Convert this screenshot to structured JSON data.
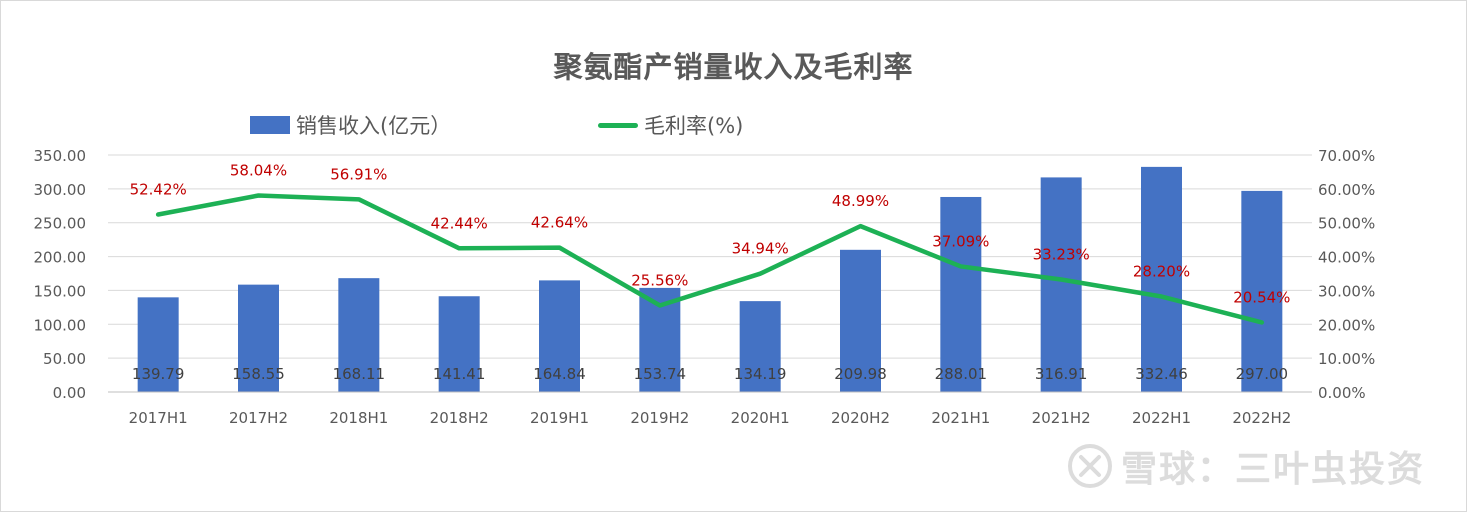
{
  "page": {
    "watermark_text": "雪球：三叶虫投资",
    "colors": {
      "bar": "#4472c4",
      "line": "#1db155",
      "line_label": "#c00000",
      "axis_text": "#595959",
      "grid": "#d9d9d9"
    }
  },
  "chart_data": {
    "type": "bar",
    "title": "聚氨酯产销量收入及毛利率",
    "legend_position": "top",
    "grid": true,
    "categories": [
      "2017H1",
      "2017H2",
      "2018H1",
      "2018H2",
      "2019H1",
      "2019H2",
      "2020H1",
      "2020H2",
      "2021H1",
      "2021H2",
      "2022H1",
      "2022H2"
    ],
    "series": [
      {
        "name": "销售收入(亿元）",
        "type": "bar",
        "axis": "left",
        "values": [
          139.79,
          158.55,
          168.11,
          141.41,
          164.84,
          153.74,
          134.19,
          209.98,
          288.01,
          316.91,
          332.46,
          297.0
        ],
        "labels": [
          "139.79",
          "158.55",
          "168.11",
          "141.41",
          "164.84",
          "153.74",
          "134.19",
          "209.98",
          "288.01",
          "316.91",
          "332.46",
          "297.00"
        ]
      },
      {
        "name": "毛利率(%)",
        "type": "line",
        "axis": "right",
        "values": [
          52.42,
          58.04,
          56.91,
          42.44,
          42.64,
          25.56,
          34.94,
          48.99,
          37.09,
          33.23,
          28.2,
          20.54
        ],
        "labels": [
          "52.42%",
          "58.04%",
          "56.91%",
          "42.44%",
          "42.64%",
          "25.56%",
          "34.94%",
          "48.99%",
          "37.09%",
          "33.23%",
          "28.20%",
          "20.54%"
        ]
      }
    ],
    "y_left": {
      "range": [
        0,
        350
      ],
      "ticks": [
        "0.00",
        "50.00",
        "100.00",
        "150.00",
        "200.00",
        "250.00",
        "300.00",
        "350.00"
      ]
    },
    "y_right": {
      "range": [
        0,
        70
      ],
      "ticks": [
        "0.00%",
        "10.00%",
        "20.00%",
        "30.00%",
        "40.00%",
        "50.00%",
        "60.00%",
        "70.00%"
      ]
    }
  }
}
